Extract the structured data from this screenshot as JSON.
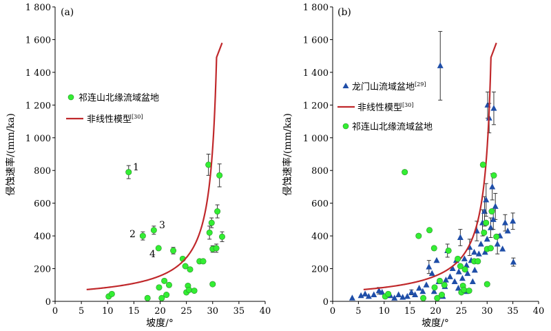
{
  "chart_data": [
    {
      "type": "scatter",
      "panel_label": "(a)",
      "xlabel": "坡度/°",
      "ylabel": "侵蚀速率/(mm/ka)",
      "xlim": [
        0,
        40
      ],
      "ylim": [
        0,
        1800
      ],
      "x_ticks": [
        "0",
        "5",
        "10",
        "15",
        "20",
        "25",
        "30",
        "35",
        "40"
      ],
      "y_ticks": [
        "0",
        "200",
        "400",
        "600",
        "800",
        "1 000",
        "1 200",
        "1 400",
        "1 600",
        "1 800"
      ],
      "series": [
        {
          "name": "祁连山北缘流域盆地",
          "marker": "circle",
          "color": "#33ee33",
          "points": [
            {
              "x": 10.2,
              "y": 30
            },
            {
              "x": 10.8,
              "y": 45
            },
            {
              "x": 14.0,
              "y": 790,
              "err": 40
            },
            {
              "x": 16.7,
              "y": 400,
              "err": 25
            },
            {
              "x": 17.6,
              "y": 20
            },
            {
              "x": 18.8,
              "y": 435,
              "err": 25
            },
            {
              "x": 19.7,
              "y": 325
            },
            {
              "x": 19.8,
              "y": 85
            },
            {
              "x": 20.3,
              "y": 20
            },
            {
              "x": 20.8,
              "y": 125
            },
            {
              "x": 21.2,
              "y": 40
            },
            {
              "x": 21.7,
              "y": 100
            },
            {
              "x": 22.5,
              "y": 310,
              "err": 20
            },
            {
              "x": 24.3,
              "y": 260
            },
            {
              "x": 24.8,
              "y": 215
            },
            {
              "x": 25.0,
              "y": 55
            },
            {
              "x": 25.3,
              "y": 95
            },
            {
              "x": 25.5,
              "y": 70
            },
            {
              "x": 25.7,
              "y": 195
            },
            {
              "x": 26.5,
              "y": 65
            },
            {
              "x": 27.5,
              "y": 245
            },
            {
              "x": 28.2,
              "y": 245
            },
            {
              "x": 29.2,
              "y": 835,
              "err": 65
            },
            {
              "x": 29.4,
              "y": 420,
              "err": 40
            },
            {
              "x": 29.8,
              "y": 480,
              "err": 30
            },
            {
              "x": 30.0,
              "y": 320,
              "err": 20
            },
            {
              "x": 30.0,
              "y": 105
            },
            {
              "x": 30.7,
              "y": 325,
              "err": 25
            },
            {
              "x": 30.9,
              "y": 550,
              "err": 40
            },
            {
              "x": 31.3,
              "y": 770,
              "err": 70
            },
            {
              "x": 31.8,
              "y": 395,
              "err": 30
            }
          ]
        },
        {
          "name": "非线性模型",
          "name_sup": "[30]",
          "marker": "line",
          "color": "#c0282b",
          "curve": {
            "s0": 6.0,
            "k": 58.5,
            "sc": 32.0
          }
        }
      ],
      "annotations": [
        {
          "text": "1",
          "x": 15.0,
          "y": 815
        },
        {
          "text": "2",
          "x": 14.9,
          "y": 415
        },
        {
          "text": "3",
          "x": 20.3,
          "y": 465
        },
        {
          "text": "4",
          "x": 18.3,
          "y": 290
        }
      ],
      "legend": "upper-left"
    },
    {
      "type": "scatter",
      "panel_label": "(b)",
      "xlabel": "坡度/°",
      "ylabel": "侵蚀速率/(mm/ka)",
      "xlim": [
        0,
        40
      ],
      "ylim": [
        0,
        1800
      ],
      "x_ticks": [
        "0",
        "5",
        "10",
        "15",
        "20",
        "25",
        "30",
        "35",
        "40"
      ],
      "y_ticks": [
        "0",
        "200",
        "400",
        "600",
        "800",
        "1 000",
        "1 200",
        "1 400",
        "1 600",
        "1 800"
      ],
      "series": [
        {
          "name": "龙门山流域盆地",
          "name_sup": "[29]",
          "marker": "triangle",
          "color": "#1f4ea8",
          "points": [
            {
              "x": 3.8,
              "y": 20
            },
            {
              "x": 5.5,
              "y": 35
            },
            {
              "x": 6.3,
              "y": 45
            },
            {
              "x": 7.0,
              "y": 30
            },
            {
              "x": 8.0,
              "y": 40
            },
            {
              "x": 9.0,
              "y": 65,
              "err": 20
            },
            {
              "x": 9.6,
              "y": 55
            },
            {
              "x": 10.6,
              "y": 40
            },
            {
              "x": 11.2,
              "y": 35
            },
            {
              "x": 12.0,
              "y": 20
            },
            {
              "x": 12.8,
              "y": 40
            },
            {
              "x": 13.6,
              "y": 25
            },
            {
              "x": 14.5,
              "y": 30
            },
            {
              "x": 15.3,
              "y": 55,
              "err": 15
            },
            {
              "x": 16.0,
              "y": 40
            },
            {
              "x": 16.8,
              "y": 80
            },
            {
              "x": 17.5,
              "y": 60
            },
            {
              "x": 18.2,
              "y": 100
            },
            {
              "x": 18.7,
              "y": 210,
              "err": 40
            },
            {
              "x": 19.3,
              "y": 170
            },
            {
              "x": 19.7,
              "y": 60
            },
            {
              "x": 20.2,
              "y": 250
            },
            {
              "x": 20.6,
              "y": 120
            },
            {
              "x": 20.9,
              "y": 1440,
              "err": 210
            },
            {
              "x": 21.4,
              "y": 30
            },
            {
              "x": 21.8,
              "y": 90
            },
            {
              "x": 22.3,
              "y": 310,
              "err": 40
            },
            {
              "x": 22.8,
              "y": 150
            },
            {
              "x": 23.3,
              "y": 200
            },
            {
              "x": 23.7,
              "y": 120
            },
            {
              "x": 24.0,
              "y": 250
            },
            {
              "x": 24.4,
              "y": 80
            },
            {
              "x": 24.8,
              "y": 390,
              "err": 50
            },
            {
              "x": 25.2,
              "y": 140
            },
            {
              "x": 25.6,
              "y": 260
            },
            {
              "x": 25.9,
              "y": 60
            },
            {
              "x": 26.2,
              "y": 170
            },
            {
              "x": 26.6,
              "y": 330,
              "err": 50
            },
            {
              "x": 26.9,
              "y": 250
            },
            {
              "x": 27.2,
              "y": 120
            },
            {
              "x": 27.6,
              "y": 190
            },
            {
              "x": 28.0,
              "y": 430,
              "err": 60
            },
            {
              "x": 28.4,
              "y": 290
            },
            {
              "x": 28.8,
              "y": 350
            },
            {
              "x": 29.1,
              "y": 480,
              "err": 80
            },
            {
              "x": 29.5,
              "y": 550,
              "err": 90
            },
            {
              "x": 29.8,
              "y": 620,
              "err": 100
            },
            {
              "x": 30.1,
              "y": 1200,
              "err": 80
            },
            {
              "x": 30.4,
              "y": 1120,
              "err": 90
            },
            {
              "x": 30.7,
              "y": 450,
              "err": 60
            },
            {
              "x": 31.0,
              "y": 700,
              "err": 80
            },
            {
              "x": 31.3,
              "y": 1180,
              "err": 100
            },
            {
              "x": 31.6,
              "y": 580,
              "err": 80
            },
            {
              "x": 32.0,
              "y": 350,
              "err": 60
            },
            {
              "x": 32.5,
              "y": 400
            },
            {
              "x": 33.0,
              "y": 320
            },
            {
              "x": 33.5,
              "y": 480,
              "err": 50
            },
            {
              "x": 34.0,
              "y": 430
            },
            {
              "x": 35.0,
              "y": 490,
              "err": 50
            },
            {
              "x": 35.1,
              "y": 240,
              "err": 25
            },
            {
              "x": 27.5,
              "y": 300
            },
            {
              "x": 26.0,
              "y": 220
            },
            {
              "x": 24.5,
              "y": 180
            },
            {
              "x": 22.0,
              "y": 130
            },
            {
              "x": 29.6,
              "y": 300
            },
            {
              "x": 31.2,
              "y": 500,
              "err": 60
            },
            {
              "x": 30.0,
              "y": 380
            }
          ]
        },
        {
          "name": "非线性模型",
          "name_sup": "[30]",
          "marker": "line",
          "color": "#c0282b",
          "curve": {
            "s0": 6.0,
            "k": 58.5,
            "sc": 32.0
          }
        },
        {
          "name": "祁连山北缘流域盆地",
          "marker": "circle",
          "color": "#33ee33",
          "points": [
            {
              "x": 10.2,
              "y": 30
            },
            {
              "x": 10.8,
              "y": 45
            },
            {
              "x": 14.0,
              "y": 790
            },
            {
              "x": 16.7,
              "y": 400
            },
            {
              "x": 17.6,
              "y": 20
            },
            {
              "x": 18.8,
              "y": 435
            },
            {
              "x": 19.7,
              "y": 325
            },
            {
              "x": 19.8,
              "y": 85
            },
            {
              "x": 20.3,
              "y": 20
            },
            {
              "x": 20.8,
              "y": 125
            },
            {
              "x": 21.2,
              "y": 40
            },
            {
              "x": 21.7,
              "y": 100
            },
            {
              "x": 22.5,
              "y": 310
            },
            {
              "x": 24.3,
              "y": 260
            },
            {
              "x": 24.8,
              "y": 215
            },
            {
              "x": 25.0,
              "y": 55
            },
            {
              "x": 25.3,
              "y": 95
            },
            {
              "x": 25.5,
              "y": 70
            },
            {
              "x": 25.7,
              "y": 195
            },
            {
              "x": 26.5,
              "y": 65
            },
            {
              "x": 27.5,
              "y": 245
            },
            {
              "x": 28.2,
              "y": 245
            },
            {
              "x": 29.2,
              "y": 835
            },
            {
              "x": 29.4,
              "y": 420
            },
            {
              "x": 29.8,
              "y": 480
            },
            {
              "x": 30.0,
              "y": 320
            },
            {
              "x": 30.0,
              "y": 105
            },
            {
              "x": 30.7,
              "y": 325
            },
            {
              "x": 30.9,
              "y": 550
            },
            {
              "x": 31.3,
              "y": 770
            },
            {
              "x": 31.8,
              "y": 395
            }
          ]
        }
      ],
      "legend": "upper-left"
    }
  ]
}
